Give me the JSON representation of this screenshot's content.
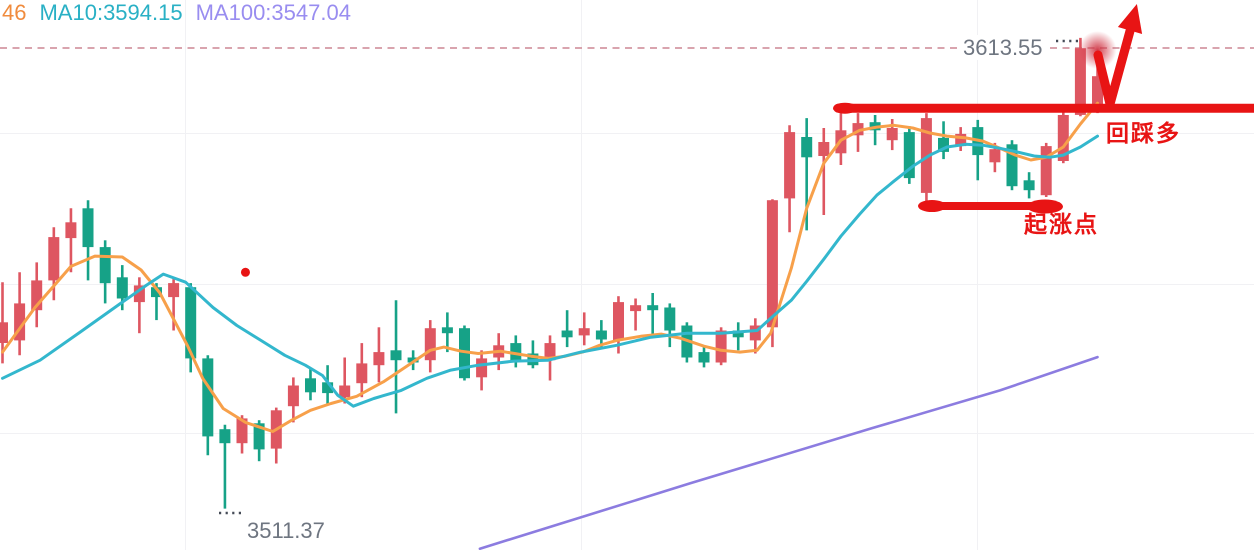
{
  "legend": {
    "ma5_partial": "46",
    "ma10": "MA10:3594.15",
    "ma100": "MA100:3547.04",
    "colors": {
      "ma5": "#f08b3d",
      "ma10": "#29b0c5",
      "ma100": "#998df0"
    }
  },
  "price_labels": {
    "high": "3613.55",
    "low": "3511.37",
    "text_color": "#6e7580",
    "leader_dot_color": "#454b57"
  },
  "annotations": {
    "pullback_label": "回踩多",
    "rise_start_label": "起涨点",
    "color": "#e81414",
    "dashed_line_color": "#d498a2",
    "resistance_level": 3600.2,
    "support_level": 3578.5,
    "dashed_line_price": 3613.55,
    "signal_dot": {
      "index": 14.2,
      "price": 3563.8
    },
    "highlight_glow": {
      "index": 64,
      "price": 3613.1
    }
  },
  "chart_data": {
    "type": "candlestick",
    "up_color": "#de5661",
    "down_color": "#16a287",
    "ma5_color": "#f7a04a",
    "ma10_color": "#33b7cd",
    "ma100_color": "#8c7ce0",
    "grid_color": "#f1f1f4",
    "high_label_price": 3613.55,
    "low_label_price": 3511.37,
    "candles": [
      [
        3548.1,
        3561.6,
        3543.6,
        3552.7
      ],
      [
        3548.7,
        3563.8,
        3545.4,
        3556.9
      ],
      [
        3555.4,
        3566.0,
        3551.6,
        3562.0
      ],
      [
        3562.0,
        3573.8,
        3557.6,
        3571.6
      ],
      [
        3571.4,
        3578.0,
        3563.8,
        3574.9
      ],
      [
        3578.0,
        3579.8,
        3562.0,
        3569.4
      ],
      [
        3569.4,
        3570.9,
        3556.9,
        3561.4
      ],
      [
        3562.7,
        3565.4,
        3555.4,
        3558.0
      ],
      [
        3557.2,
        3562.7,
        3550.3,
        3560.9
      ],
      [
        3560.5,
        3561.4,
        3553.2,
        3558.3
      ],
      [
        3558.3,
        3562.3,
        3550.9,
        3561.4
      ],
      [
        3560.5,
        3561.4,
        3541.6,
        3544.7
      ],
      [
        3544.7,
        3545.4,
        3523.2,
        3527.4
      ],
      [
        3529.0,
        3530.0,
        3511.4,
        3525.9
      ],
      [
        3525.9,
        3532.1,
        3523.6,
        3531.4
      ],
      [
        3530.3,
        3531.0,
        3521.9,
        3524.5
      ],
      [
        3524.7,
        3533.8,
        3521.4,
        3533.2
      ],
      [
        3534.1,
        3540.5,
        3530.5,
        3538.7
      ],
      [
        3540.3,
        3542.5,
        3535.4,
        3537.2
      ],
      [
        3539.4,
        3543.2,
        3534.3,
        3537.0
      ],
      [
        3536.1,
        3544.9,
        3534.7,
        3538.7
      ],
      [
        3539.2,
        3548.1,
        3536.1,
        3543.6
      ],
      [
        3543.2,
        3551.6,
        3539.4,
        3546.1
      ],
      [
        3546.5,
        3557.6,
        3532.5,
        3544.3
      ],
      [
        3544.9,
        3546.5,
        3542.1,
        3543.8
      ],
      [
        3544.3,
        3553.2,
        3541.6,
        3551.4
      ],
      [
        3551.6,
        3554.9,
        3546.1,
        3550.3
      ],
      [
        3551.4,
        3552.0,
        3539.8,
        3540.3
      ],
      [
        3540.5,
        3546.5,
        3537.6,
        3544.7
      ],
      [
        3544.9,
        3550.3,
        3542.1,
        3547.6
      ],
      [
        3548.1,
        3549.8,
        3542.7,
        3544.3
      ],
      [
        3545.8,
        3548.7,
        3542.5,
        3543.2
      ],
      [
        3544.3,
        3549.8,
        3539.8,
        3548.1
      ],
      [
        3550.9,
        3555.4,
        3547.2,
        3549.4
      ],
      [
        3549.8,
        3554.9,
        3547.6,
        3551.4
      ],
      [
        3550.9,
        3553.2,
        3547.2,
        3548.9
      ],
      [
        3548.7,
        3558.5,
        3545.8,
        3557.2
      ],
      [
        3555.2,
        3558.0,
        3550.9,
        3556.5
      ],
      [
        3556.5,
        3559.2,
        3549.4,
        3555.4
      ],
      [
        3556.0,
        3556.9,
        3547.2,
        3550.9
      ],
      [
        3552.0,
        3552.7,
        3543.8,
        3544.9
      ],
      [
        3546.1,
        3547.6,
        3542.7,
        3543.8
      ],
      [
        3543.8,
        3551.6,
        3543.2,
        3550.9
      ],
      [
        3550.9,
        3552.7,
        3546.5,
        3549.4
      ],
      [
        3548.7,
        3553.6,
        3545.8,
        3552.0
      ],
      [
        3551.6,
        3580.0,
        3547.2,
        3579.8
      ],
      [
        3580.2,
        3596.4,
        3572.7,
        3594.9
      ],
      [
        3593.8,
        3598.0,
        3573.1,
        3589.3
      ],
      [
        3589.6,
        3595.8,
        3576.5,
        3592.7
      ],
      [
        3590.2,
        3600.0,
        3587.6,
        3595.3
      ],
      [
        3594.2,
        3599.1,
        3590.5,
        3596.9
      ],
      [
        3597.1,
        3598.7,
        3592.0,
        3595.3
      ],
      [
        3593.1,
        3597.8,
        3590.9,
        3595.8
      ],
      [
        3594.9,
        3596.2,
        3583.4,
        3584.7
      ],
      [
        3581.4,
        3599.1,
        3578.5,
        3598.0
      ],
      [
        3593.6,
        3597.3,
        3588.9,
        3590.5
      ],
      [
        3591.8,
        3596.0,
        3590.7,
        3594.5
      ],
      [
        3596.0,
        3597.6,
        3584.2,
        3589.8
      ],
      [
        3588.2,
        3592.5,
        3586.0,
        3591.1
      ],
      [
        3592.2,
        3593.1,
        3582.0,
        3582.9
      ],
      [
        3584.2,
        3586.0,
        3580.2,
        3582.0
      ],
      [
        3580.9,
        3592.5,
        3580.5,
        3591.8
      ],
      [
        3588.5,
        3600.4,
        3588.0,
        3598.7
      ],
      [
        3598.7,
        3615.8,
        3598.4,
        3613.5
      ],
      [
        3599.3,
        3612.7,
        3599.1,
        3607.3
      ]
    ],
    "ma5": [
      [
        0,
        3546.1
      ],
      [
        1.9,
        3556.0
      ],
      [
        4,
        3565.1
      ],
      [
        5.4,
        3567.4
      ],
      [
        7,
        3567.2
      ],
      [
        8.1,
        3564.3
      ],
      [
        9.2,
        3559.2
      ],
      [
        10.8,
        3547.6
      ],
      [
        11.7,
        3540.3
      ],
      [
        12.9,
        3533.6
      ],
      [
        14.2,
        3530.5
      ],
      [
        15.8,
        3528.5
      ],
      [
        16.9,
        3531.0
      ],
      [
        18,
        3533.2
      ],
      [
        19.2,
        3534.7
      ],
      [
        20.7,
        3536.3
      ],
      [
        22.3,
        3539.6
      ],
      [
        23.8,
        3543.4
      ],
      [
        25,
        3546.5
      ],
      [
        25.8,
        3547.2
      ],
      [
        26.8,
        3546.3
      ],
      [
        27.8,
        3545.8
      ],
      [
        29.1,
        3546.3
      ],
      [
        30.9,
        3545.2
      ],
      [
        31.9,
        3544.7
      ],
      [
        32.9,
        3545.2
      ],
      [
        33.9,
        3546.1
      ],
      [
        34.9,
        3547.6
      ],
      [
        35.9,
        3548.7
      ],
      [
        37.3,
        3549.6
      ],
      [
        38.5,
        3550.1
      ],
      [
        39.6,
        3549.2
      ],
      [
        41,
        3547.4
      ],
      [
        42,
        3546.5
      ],
      [
        43.1,
        3546.1
      ],
      [
        44.1,
        3546.5
      ],
      [
        44.9,
        3550.3
      ],
      [
        46.1,
        3564.7
      ],
      [
        47,
        3578.0
      ],
      [
        48,
        3588.0
      ],
      [
        49,
        3593.1
      ],
      [
        50.1,
        3595.3
      ],
      [
        51.1,
        3596.0
      ],
      [
        52.1,
        3596.4
      ],
      [
        53.2,
        3595.8
      ],
      [
        54.2,
        3594.7
      ],
      [
        55.2,
        3594.0
      ],
      [
        56.3,
        3593.6
      ],
      [
        57.3,
        3592.9
      ],
      [
        58.3,
        3591.3
      ],
      [
        59.2,
        3589.8
      ],
      [
        60.1,
        3588.7
      ],
      [
        61,
        3589.3
      ],
      [
        62,
        3591.6
      ],
      [
        63,
        3596.7
      ],
      [
        64,
        3601.3
      ]
    ],
    "ma10": [
      [
        0,
        3540.3
      ],
      [
        2.2,
        3544.3
      ],
      [
        4.6,
        3550.7
      ],
      [
        6.9,
        3556.9
      ],
      [
        8.4,
        3560.9
      ],
      [
        9.4,
        3563.4
      ],
      [
        10.7,
        3561.6
      ],
      [
        12.3,
        3556.0
      ],
      [
        13.7,
        3552.0
      ],
      [
        15.1,
        3548.7
      ],
      [
        16.5,
        3545.4
      ],
      [
        17.7,
        3543.2
      ],
      [
        18.7,
        3540.9
      ],
      [
        19.6,
        3536.5
      ],
      [
        20.5,
        3534.1
      ],
      [
        21.7,
        3535.8
      ],
      [
        23.3,
        3537.6
      ],
      [
        24.8,
        3540.3
      ],
      [
        26.2,
        3542.1
      ],
      [
        27.8,
        3543.2
      ],
      [
        29.9,
        3544.1
      ],
      [
        31.9,
        3544.3
      ],
      [
        33.8,
        3546.1
      ],
      [
        35.9,
        3547.6
      ],
      [
        37.9,
        3549.4
      ],
      [
        40,
        3550.3
      ],
      [
        42,
        3550.3
      ],
      [
        44.1,
        3550.9
      ],
      [
        44.9,
        3553.6
      ],
      [
        46.1,
        3557.6
      ],
      [
        47,
        3561.8
      ],
      [
        48,
        3566.7
      ],
      [
        49,
        3571.8
      ],
      [
        50.1,
        3576.7
      ],
      [
        51.1,
        3580.9
      ],
      [
        52.1,
        3584.0
      ],
      [
        53.2,
        3587.3
      ],
      [
        54.2,
        3589.8
      ],
      [
        55.2,
        3591.6
      ],
      [
        56.3,
        3592.2
      ],
      [
        57.3,
        3592.0
      ],
      [
        58.3,
        3591.3
      ],
      [
        59.3,
        3590.5
      ],
      [
        60.3,
        3589.6
      ],
      [
        61.2,
        3589.3
      ],
      [
        62,
        3589.8
      ],
      [
        63,
        3591.6
      ],
      [
        64,
        3594.0
      ]
    ],
    "ma100": [
      [
        27.9,
        3502.5
      ],
      [
        40.2,
        3517.0
      ],
      [
        50.8,
        3529.2
      ],
      [
        58.3,
        3537.6
      ],
      [
        64,
        3545.0
      ]
    ]
  }
}
